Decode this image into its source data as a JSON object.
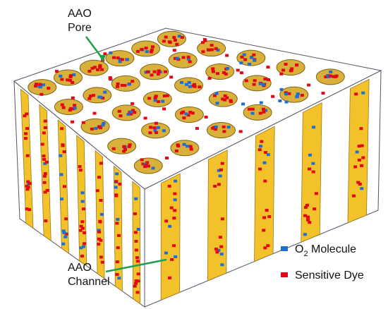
{
  "pore_label": [
    "AAO",
    "Pore"
  ],
  "channel_label": [
    "AAO",
    "Channel"
  ],
  "legend": [
    {
      "name_parts": {
        "text": "O",
        "subscript": "2",
        "rest": " Molecule"
      },
      "color": "#1e6fd2"
    },
    {
      "name": "Sensitive Dye",
      "color": "#e30613"
    }
  ]
}
